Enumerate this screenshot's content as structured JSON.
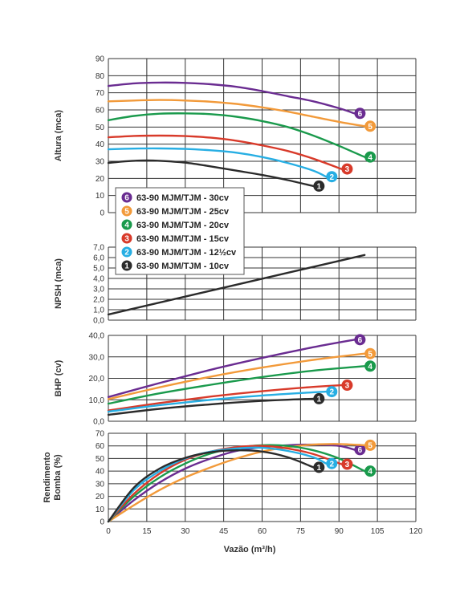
{
  "colors": {
    "6": "#6a2c91",
    "5": "#f29a3a",
    "4": "#1a9a4c",
    "3": "#d83a2a",
    "2": "#27aee3",
    "1": "#2b2b2b",
    "npsh": "#2b2b2b",
    "grid": "#333333"
  },
  "chart_data": [
    {
      "type": "line",
      "panel": "altura",
      "ylabel": "Altura (mca)",
      "xlim": [
        0,
        120
      ],
      "ylim": [
        0,
        90
      ],
      "yticks": [
        "0",
        "10",
        "20",
        "30",
        "40",
        "50",
        "60",
        "70",
        "80",
        "90"
      ],
      "series": [
        {
          "key": "6",
          "badge": "6",
          "x": [
            0,
            10,
            20,
            30,
            40,
            50,
            60,
            70,
            80,
            90,
            96
          ],
          "y": [
            74,
            75.5,
            76,
            75.8,
            75,
            73.5,
            71,
            68,
            65,
            61,
            58
          ]
        },
        {
          "key": "5",
          "badge": "5",
          "x": [
            0,
            10,
            20,
            30,
            40,
            50,
            60,
            70,
            80,
            90,
            100
          ],
          "y": [
            65,
            65.5,
            65.8,
            65.5,
            64.8,
            63.5,
            61.5,
            59,
            56,
            53,
            50.5
          ]
        },
        {
          "key": "4",
          "badge": "4",
          "x": [
            0,
            10,
            20,
            30,
            40,
            50,
            60,
            70,
            80,
            90,
            100
          ],
          "y": [
            54,
            56.5,
            57.8,
            58,
            57.5,
            56,
            53.5,
            50,
            45,
            39,
            32.5
          ]
        },
        {
          "key": "3",
          "badge": "3",
          "x": [
            0,
            10,
            20,
            30,
            40,
            50,
            60,
            70,
            80,
            91
          ],
          "y": [
            44,
            44.8,
            45,
            44.7,
            43.8,
            42,
            39.3,
            36,
            31.5,
            25.5
          ]
        },
        {
          "key": "2",
          "badge": "2",
          "x": [
            0,
            10,
            20,
            30,
            40,
            50,
            60,
            70,
            80,
            85
          ],
          "y": [
            37,
            37.4,
            37.5,
            37.2,
            36.4,
            35,
            32.5,
            29,
            24.5,
            21
          ]
        },
        {
          "key": "1",
          "badge": "1",
          "x": [
            0,
            5,
            10,
            15,
            20,
            30,
            40,
            50,
            60,
            70,
            80
          ],
          "y": [
            29,
            29.8,
            30.3,
            30.5,
            30.3,
            29.2,
            27,
            24.5,
            22,
            19,
            15.5
          ]
        }
      ]
    },
    {
      "type": "line",
      "panel": "npsh",
      "ylabel": "NPSH (mca)",
      "xlim": [
        0,
        120
      ],
      "ylim": [
        0,
        7
      ],
      "yticks": [
        "0,0",
        "1,0",
        "2,0",
        "3,0",
        "4,0",
        "5,0",
        "6,0",
        "7,0"
      ],
      "series": [
        {
          "key": "npsh",
          "x": [
            0,
            100
          ],
          "y": [
            0.55,
            6.25
          ]
        }
      ]
    },
    {
      "type": "line",
      "panel": "bhp",
      "ylabel": "BHP (cv)",
      "xlim": [
        0,
        120
      ],
      "ylim": [
        0,
        40
      ],
      "yticks": [
        "0,0",
        "10,0",
        "20,0",
        "30,0",
        "40,0"
      ],
      "series": [
        {
          "key": "6",
          "badge": "6",
          "x": [
            0,
            20,
            40,
            60,
            80,
            96
          ],
          "y": [
            11.3,
            17.8,
            24,
            29.5,
            34.5,
            38
          ]
        },
        {
          "key": "5",
          "badge": "5",
          "x": [
            0,
            20,
            40,
            60,
            80,
            100
          ],
          "y": [
            10.3,
            15.8,
            20.8,
            25,
            28.6,
            31.5
          ]
        },
        {
          "key": "4",
          "badge": "4",
          "x": [
            0,
            20,
            40,
            60,
            80,
            100
          ],
          "y": [
            8.2,
            13,
            17,
            20.6,
            23.6,
            25.7
          ]
        },
        {
          "key": "3",
          "badge": "3",
          "x": [
            0,
            20,
            40,
            60,
            80,
            91
          ],
          "y": [
            5,
            8.5,
            11.5,
            14,
            16,
            16.8
          ]
        },
        {
          "key": "2",
          "badge": "2",
          "x": [
            0,
            20,
            40,
            60,
            80,
            85
          ],
          "y": [
            4.5,
            7.5,
            10,
            12,
            13.5,
            13.8
          ]
        },
        {
          "key": "1",
          "badge": "1",
          "x": [
            0,
            20,
            40,
            60,
            80
          ],
          "y": [
            3,
            5.8,
            7.9,
            9.5,
            10.5
          ]
        }
      ]
    },
    {
      "type": "line",
      "panel": "rendimento",
      "ylabel": "Rendimento Bomba (%)",
      "ylabel_lines": [
        "Rendimento",
        "Bomba (%)"
      ],
      "xlabel": "Vazão (m³/h)",
      "xlim": [
        0,
        120
      ],
      "ylim": [
        0,
        70
      ],
      "xticks": [
        "0",
        "15",
        "30",
        "45",
        "60",
        "75",
        "90",
        "105",
        "120"
      ],
      "yticks": [
        "0",
        "10",
        "20",
        "30",
        "40",
        "50",
        "60",
        "70"
      ],
      "series": [
        {
          "key": "6",
          "badge": "6",
          "x": [
            0,
            10,
            20,
            30,
            40,
            50,
            60,
            70,
            80,
            90,
            96
          ],
          "y": [
            0,
            17,
            31,
            42,
            50,
            56,
            59,
            60.5,
            61,
            60,
            57
          ]
        },
        {
          "key": "5",
          "badge": "5",
          "x": [
            0,
            10,
            20,
            30,
            40,
            50,
            60,
            70,
            80,
            90,
            100
          ],
          "y": [
            0,
            13,
            25,
            35,
            43,
            50,
            55.5,
            59,
            61,
            61.5,
            60.5
          ]
        },
        {
          "key": "4",
          "badge": "4",
          "x": [
            0,
            10,
            20,
            30,
            40,
            50,
            60,
            70,
            80,
            90,
            100
          ],
          "y": [
            0,
            20,
            35,
            46,
            54,
            58.5,
            60.5,
            60,
            56.5,
            50,
            40
          ]
        },
        {
          "key": "3",
          "badge": "3",
          "x": [
            0,
            10,
            20,
            30,
            40,
            50,
            60,
            70,
            80,
            91
          ],
          "y": [
            0,
            22,
            38,
            49,
            55.5,
            59,
            60,
            58,
            53.5,
            45.5
          ]
        },
        {
          "key": "2",
          "badge": "2",
          "x": [
            0,
            10,
            20,
            30,
            40,
            50,
            60,
            70,
            80,
            85
          ],
          "y": [
            0,
            25,
            40,
            50,
            55.5,
            58,
            58.5,
            56,
            51,
            46
          ]
        },
        {
          "key": "1",
          "badge": "1",
          "x": [
            0,
            10,
            20,
            30,
            40,
            50,
            60,
            70,
            80
          ],
          "y": [
            0,
            27,
            42,
            50.5,
            55,
            56.5,
            55.5,
            51,
            43
          ]
        }
      ]
    }
  ],
  "legend": [
    {
      "key": "6",
      "badge": "6",
      "label": "63-90 MJM/TJM - 30cv"
    },
    {
      "key": "5",
      "badge": "5",
      "label": "63-90 MJM/TJM - 25cv"
    },
    {
      "key": "4",
      "badge": "4",
      "label": "63-90 MJM/TJM - 20cv"
    },
    {
      "key": "3",
      "badge": "3",
      "label": "63-90 MJM/TJM - 15cv"
    },
    {
      "key": "2",
      "badge": "2",
      "label": "63-90 MJM/TJM - 12½cv"
    },
    {
      "key": "1",
      "badge": "1",
      "label": "63-90 MJM/TJM - 10cv"
    }
  ]
}
